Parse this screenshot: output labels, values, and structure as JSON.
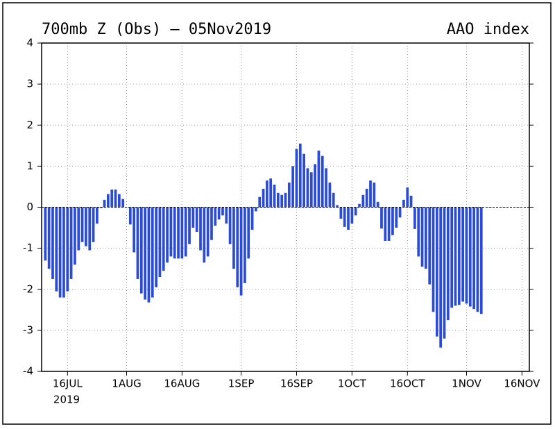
{
  "chart_data": {
    "type": "bar",
    "title": "700mb Z (Obs) – 05Nov2019",
    "index_label": "AAO index",
    "year_label": "2019",
    "color": "#2a4bd7",
    "grid": true,
    "zero_line": true,
    "ylim": [
      -4,
      4
    ],
    "yticks": [
      -4,
      -3,
      -2,
      -1,
      0,
      1,
      2,
      3,
      4
    ],
    "xlim": [
      "2019-07-09",
      "2019-11-18"
    ],
    "xticks": [
      {
        "value": "2019-07-16",
        "label": "16JUL"
      },
      {
        "value": "2019-08-01",
        "label": "1AUG"
      },
      {
        "value": "2019-08-16",
        "label": "16AUG"
      },
      {
        "value": "2019-09-01",
        "label": "1SEP"
      },
      {
        "value": "2019-09-16",
        "label": "16SEP"
      },
      {
        "value": "2019-10-01",
        "label": "1OCT"
      },
      {
        "value": "2019-10-16",
        "label": "16OCT"
      },
      {
        "value": "2019-11-01",
        "label": "1NOV"
      },
      {
        "value": "2019-11-16",
        "label": "16NOV"
      }
    ],
    "x": [
      "2019-07-10",
      "2019-07-11",
      "2019-07-12",
      "2019-07-13",
      "2019-07-14",
      "2019-07-15",
      "2019-07-16",
      "2019-07-17",
      "2019-07-18",
      "2019-07-19",
      "2019-07-20",
      "2019-07-21",
      "2019-07-22",
      "2019-07-23",
      "2019-07-24",
      "2019-07-25",
      "2019-07-26",
      "2019-07-27",
      "2019-07-28",
      "2019-07-29",
      "2019-07-30",
      "2019-07-31",
      "2019-08-01",
      "2019-08-02",
      "2019-08-03",
      "2019-08-04",
      "2019-08-05",
      "2019-08-06",
      "2019-08-07",
      "2019-08-08",
      "2019-08-09",
      "2019-08-10",
      "2019-08-11",
      "2019-08-12",
      "2019-08-13",
      "2019-08-14",
      "2019-08-15",
      "2019-08-16",
      "2019-08-17",
      "2019-08-18",
      "2019-08-19",
      "2019-08-20",
      "2019-08-21",
      "2019-08-22",
      "2019-08-23",
      "2019-08-24",
      "2019-08-25",
      "2019-08-26",
      "2019-08-27",
      "2019-08-28",
      "2019-08-29",
      "2019-08-30",
      "2019-08-31",
      "2019-09-01",
      "2019-09-02",
      "2019-09-03",
      "2019-09-04",
      "2019-09-05",
      "2019-09-06",
      "2019-09-07",
      "2019-09-08",
      "2019-09-09",
      "2019-09-10",
      "2019-09-11",
      "2019-09-12",
      "2019-09-13",
      "2019-09-14",
      "2019-09-15",
      "2019-09-16",
      "2019-09-17",
      "2019-09-18",
      "2019-09-19",
      "2019-09-20",
      "2019-09-21",
      "2019-09-22",
      "2019-09-23",
      "2019-09-24",
      "2019-09-25",
      "2019-09-26",
      "2019-09-27",
      "2019-09-28",
      "2019-09-29",
      "2019-09-30",
      "2019-10-01",
      "2019-10-02",
      "2019-10-03",
      "2019-10-04",
      "2019-10-05",
      "2019-10-06",
      "2019-10-07",
      "2019-10-08",
      "2019-10-09",
      "2019-10-10",
      "2019-10-11",
      "2019-10-12",
      "2019-10-13",
      "2019-10-14",
      "2019-10-15",
      "2019-10-16",
      "2019-10-17",
      "2019-10-18",
      "2019-10-19",
      "2019-10-20",
      "2019-10-21",
      "2019-10-22",
      "2019-10-23",
      "2019-10-24",
      "2019-10-25",
      "2019-10-26",
      "2019-10-27",
      "2019-10-28",
      "2019-10-29",
      "2019-10-30",
      "2019-10-31",
      "2019-11-01",
      "2019-11-02",
      "2019-11-03",
      "2019-11-04",
      "2019-11-05"
    ],
    "values": [
      -1.3,
      -1.5,
      -1.75,
      -2.05,
      -2.2,
      -2.2,
      -2.05,
      -1.75,
      -1.4,
      -1.05,
      -0.85,
      -0.95,
      -1.05,
      -0.85,
      -0.4,
      -0.02,
      0.18,
      0.32,
      0.43,
      0.43,
      0.32,
      0.2,
      0.0,
      -0.42,
      -1.1,
      -1.75,
      -2.1,
      -2.25,
      -2.32,
      -2.2,
      -1.95,
      -1.7,
      -1.55,
      -1.35,
      -1.2,
      -1.25,
      -1.25,
      -1.25,
      -1.2,
      -0.9,
      -0.5,
      -0.6,
      -1.05,
      -1.35,
      -1.2,
      -0.8,
      -0.45,
      -0.3,
      -0.2,
      -0.4,
      -0.9,
      -1.5,
      -1.95,
      -2.15,
      -1.85,
      -1.25,
      -0.55,
      -0.1,
      0.25,
      0.45,
      0.65,
      0.7,
      0.55,
      0.35,
      0.3,
      0.35,
      0.6,
      1.0,
      1.42,
      1.55,
      1.3,
      0.95,
      0.85,
      1.05,
      1.38,
      1.25,
      0.95,
      0.6,
      0.35,
      0.05,
      -0.28,
      -0.48,
      -0.55,
      -0.4,
      -0.2,
      0.08,
      0.3,
      0.45,
      0.65,
      0.6,
      0.13,
      -0.52,
      -0.82,
      -0.82,
      -0.68,
      -0.5,
      -0.25,
      0.18,
      0.48,
      0.28,
      -0.53,
      -1.2,
      -1.45,
      -1.5,
      -1.88,
      -2.55,
      -3.15,
      -3.42,
      -3.2,
      -2.75,
      -2.45,
      -2.4,
      -2.38,
      -2.3,
      -2.35,
      -2.42,
      -2.48,
      -2.55,
      -2.6
    ]
  }
}
